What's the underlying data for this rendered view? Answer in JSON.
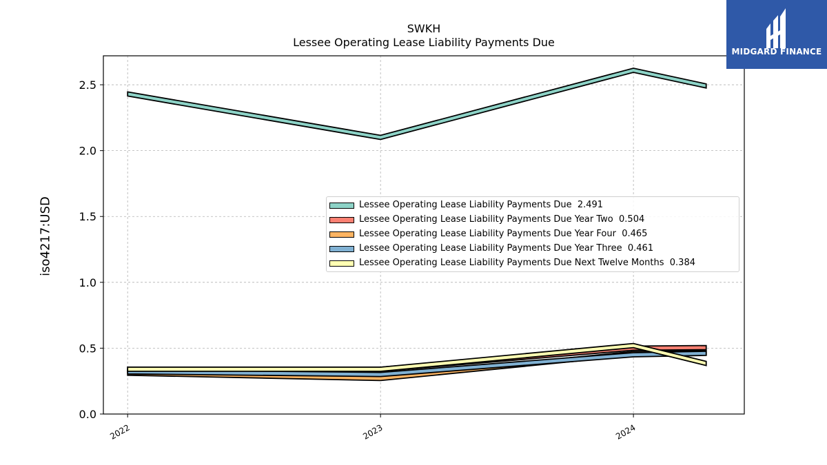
{
  "logo": {
    "text": "MIDGARD FINANCE"
  },
  "chart_data": {
    "type": "area",
    "title": "SWKH",
    "subtitle": "Lessee Operating Lease Liability Payments Due",
    "ylabel": "iso4217:USD",
    "xlabel": "",
    "x": [
      "2022-01-01",
      "2023-01-01",
      "2024-01-01",
      "2024-04-15"
    ],
    "xticks": [
      "2022",
      "2023",
      "2024"
    ],
    "yticks": [
      "0.0",
      "0.5",
      "1.0",
      "1.5",
      "2.0",
      "2.5"
    ],
    "ylim": [
      0,
      2.72
    ],
    "grid": true,
    "legend_position": "center-right",
    "series": [
      {
        "name": "Lessee Operating Lease Liability Payments Due",
        "last_value_label": "2.491",
        "color": "#8dd3c7",
        "values": [
          2.43,
          2.1,
          2.61,
          2.491
        ]
      },
      {
        "name": "Lessee Operating Lease Liability Payments Due Year Two",
        "last_value_label": "0.504",
        "color": "#fb8072",
        "values": [
          0.34,
          0.34,
          0.5,
          0.504
        ]
      },
      {
        "name": "Lessee Operating Lease Liability Payments Due Year Four",
        "last_value_label": "0.465",
        "color": "#fdb462",
        "values": [
          0.31,
          0.27,
          0.46,
          0.465
        ]
      },
      {
        "name": "Lessee Operating Lease Liability Payments Due Year Three",
        "last_value_label": "0.461",
        "color": "#80b1d3",
        "values": [
          0.32,
          0.3,
          0.45,
          0.461
        ]
      },
      {
        "name": "Lessee Operating Lease Liability Payments Due Next Twelve Months",
        "last_value_label": "0.384",
        "color": "#ffffb3",
        "values": [
          0.34,
          0.34,
          0.52,
          0.384
        ]
      }
    ]
  }
}
